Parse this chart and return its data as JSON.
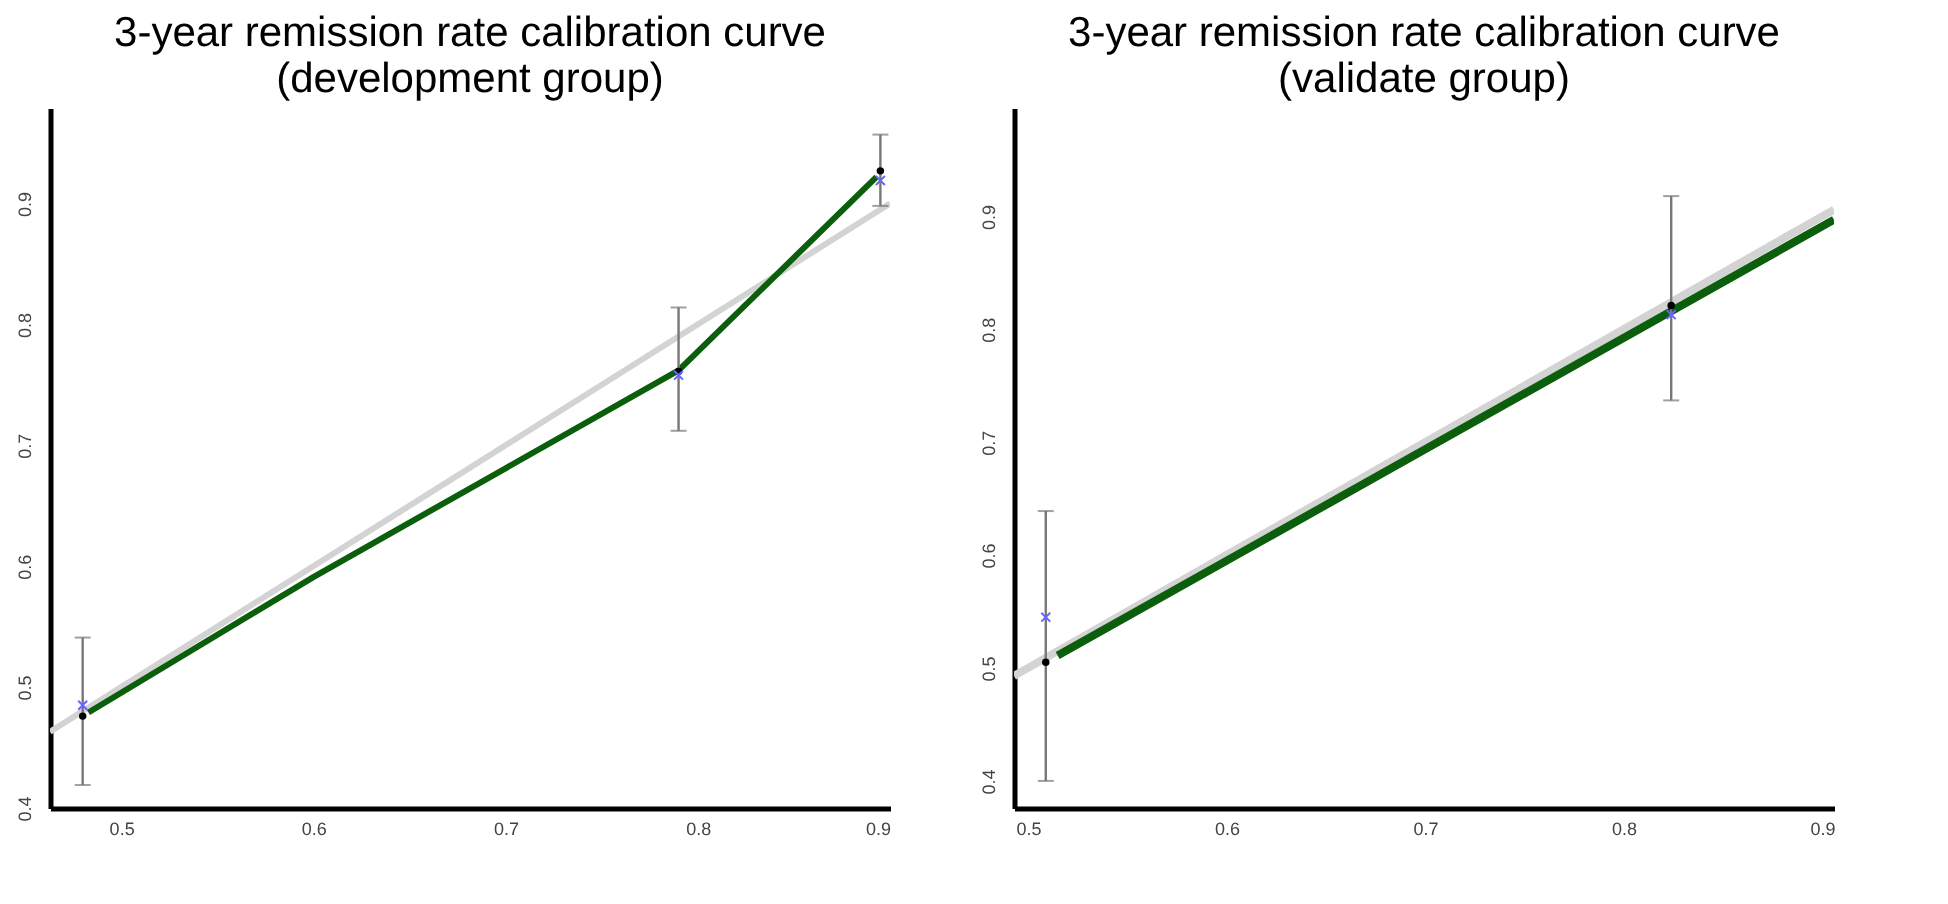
{
  "chart_data": [
    {
      "type": "line",
      "title": "3-year remission rate calibration curve\n(development group)",
      "xlim": [
        0.463,
        0.9
      ],
      "ylim": [
        0.4,
        0.979
      ],
      "xticks": [
        0.5,
        0.6,
        0.7,
        0.8,
        0.9
      ],
      "yticks": [
        0.4,
        0.5,
        0.6,
        0.7,
        0.8,
        0.9
      ],
      "series": [
        {
          "type": "line",
          "color": "#d3d3d3",
          "x": [
            0.463,
            0.9
          ],
          "values": [
            0.463,
            0.9
          ]
        },
        {
          "type": "line",
          "color": "#0b5e0b",
          "x": [
            0.483,
            0.6,
            0.7,
            0.79,
            0.893
          ],
          "values": [
            0.479,
            0.591,
            0.681,
            0.762,
            0.922
          ]
        },
        {
          "type": "scatter",
          "color": "#000000",
          "marker": "circle",
          "x": [
            0.48,
            0.79,
            0.895
          ],
          "values": [
            0.476,
            0.761,
            0.927
          ],
          "errors": [
            [
              0.419,
              0.541
            ],
            [
              0.712,
              0.814
            ],
            [
              0.898,
              0.957
            ]
          ]
        },
        {
          "type": "scatter",
          "color": "#6666ff",
          "marker": "cross",
          "x": [
            0.48,
            0.79,
            0.895
          ],
          "values": [
            0.485,
            0.758,
            0.919
          ]
        }
      ]
    },
    {
      "type": "line",
      "title": "3-year remission rate calibration curve\n(validate group)",
      "xlim": [
        0.493,
        0.906
      ],
      "ylim": [
        0.376,
        0.996
      ],
      "xticks": [
        0.5,
        0.6,
        0.7,
        0.8,
        0.9
      ],
      "yticks": [
        0.4,
        0.5,
        0.6,
        0.7,
        0.8,
        0.9
      ],
      "series": [
        {
          "type": "line",
          "color": "#d3d3d3",
          "x": [
            0.493,
            0.906
          ],
          "values": [
            0.493,
            0.906
          ]
        },
        {
          "type": "line",
          "color": "#0b5e0b",
          "x": [
            0.515,
            0.906
          ],
          "values": [
            0.511,
            0.897
          ]
        },
        {
          "type": "scatter",
          "color": "#000000",
          "marker": "circle",
          "x": [
            0.509,
            0.824
          ],
          "values": [
            0.505,
            0.821
          ],
          "errors": [
            [
              0.4,
              0.639
            ],
            [
              0.737,
              0.918
            ]
          ]
        },
        {
          "type": "scatter",
          "color": "#6666ff",
          "marker": "cross",
          "x": [
            0.509,
            0.824
          ],
          "values": [
            0.545,
            0.813
          ]
        }
      ]
    }
  ]
}
